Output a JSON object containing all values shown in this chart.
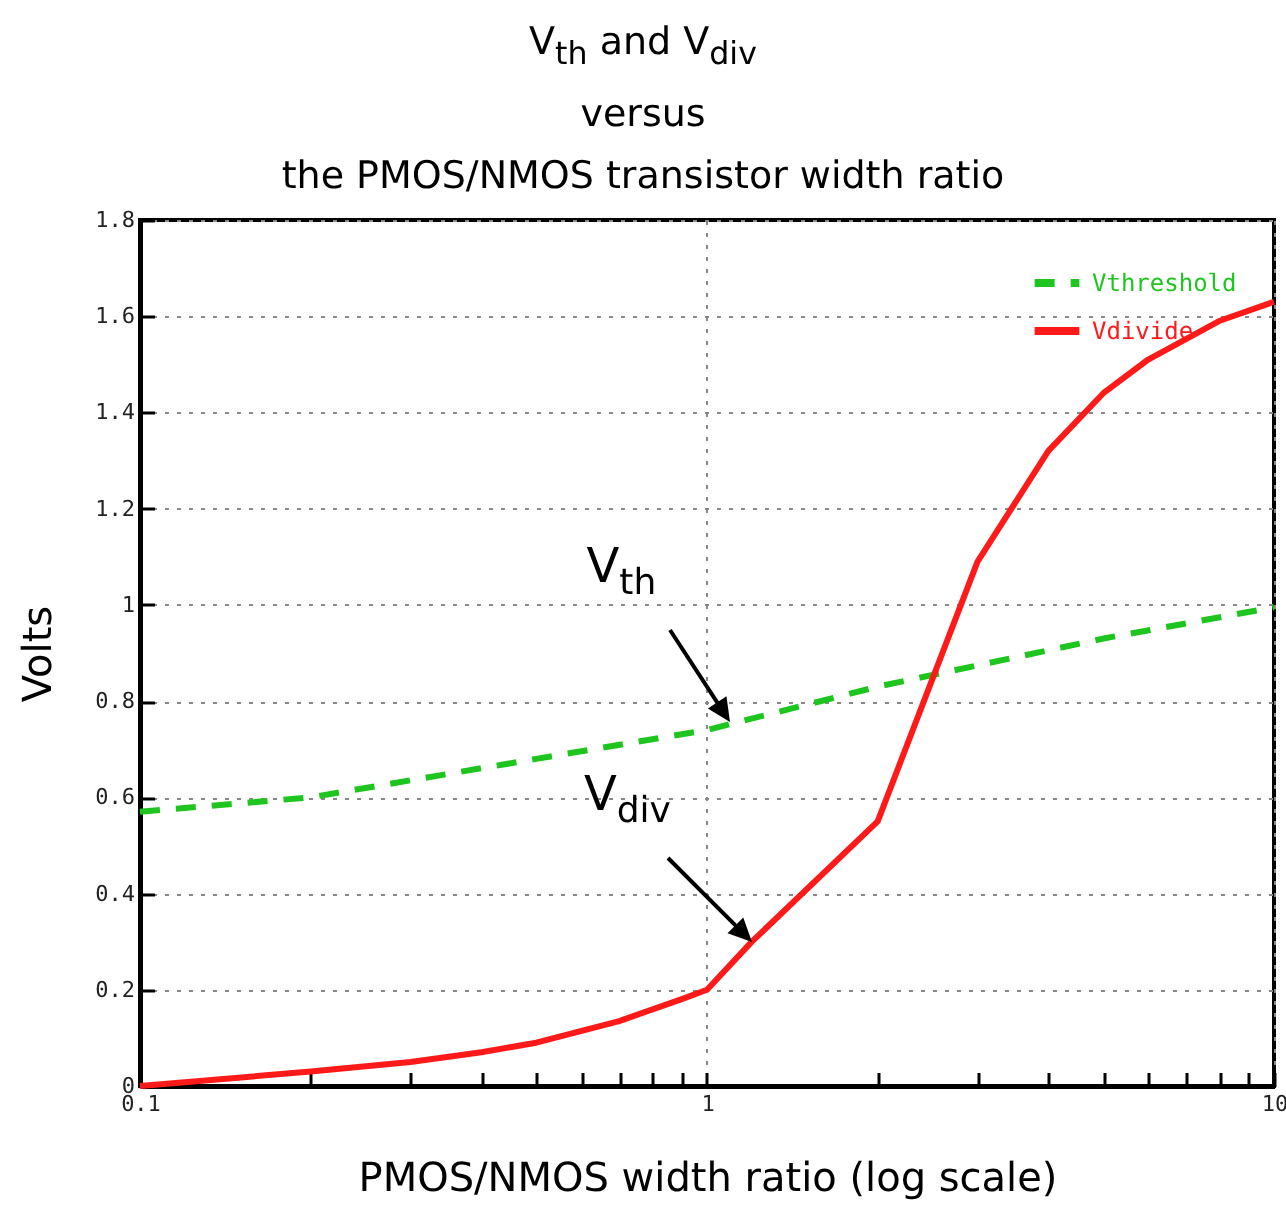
{
  "chart_data": {
    "type": "line",
    "title": "V$_{th}$ and V$_{div}$\nversus\nthe PMOS/NMOS transistor width ratio",
    "xlabel": "PMOS/NMOS width ratio (log scale)",
    "ylabel": "Volts",
    "log": "x",
    "grid": true,
    "legend": "top right",
    "xlim": [
      0.1,
      10
    ],
    "xticks": [
      0.1,
      {
        "value": 0.2,
        "label": null
      },
      {
        "value": 0.3,
        "label": null
      },
      {
        "value": 0.4,
        "label": null
      },
      {
        "value": 0.5,
        "label": null
      },
      {
        "value": 0.6,
        "label": null
      },
      {
        "value": 0.7,
        "label": null
      },
      {
        "value": 0.8,
        "label": null
      },
      {
        "value": 0.9,
        "label": null
      },
      1,
      {
        "value": 2,
        "label": null
      },
      {
        "value": 3,
        "label": null
      },
      {
        "value": 4,
        "label": null
      },
      {
        "value": 5,
        "label": null
      },
      {
        "value": 6,
        "label": null
      },
      {
        "value": 7,
        "label": null
      },
      {
        "value": 8,
        "label": null
      },
      {
        "value": 9,
        "label": null
      },
      10
    ],
    "ylim": [
      0,
      1.8
    ],
    "yticks": [
      0,
      0.2,
      0.4,
      0.6,
      0.8,
      1,
      1.2,
      1.4,
      1.6,
      1.8
    ],
    "series": [
      {
        "name": "Vthreshold",
        "color": "#1ec51e",
        "line_style": "dashed",
        "x": [
          0.1,
          0.2,
          0.5,
          1,
          2,
          5,
          10
        ],
        "values": [
          0.57,
          0.6,
          0.68,
          0.74,
          0.83,
          0.93,
          0.995
        ]
      },
      {
        "name": "Vdivide",
        "color": "#ff1a1a",
        "line_style": "solid",
        "x": [
          0.1,
          0.2,
          0.3,
          0.4,
          0.5,
          0.7,
          0.9,
          1,
          1.2,
          2,
          3,
          4,
          5,
          6,
          8,
          10
        ],
        "values": [
          0,
          0.03,
          0.05,
          0.07,
          0.09,
          0.135,
          0.18,
          0.2,
          0.3,
          0.55,
          1.09,
          1.32,
          1.44,
          1.51,
          1.59,
          1.63
        ]
      }
    ],
    "annotations": [
      {
        "text": "V$_{th}$",
        "x": 1.1,
        "y": 0.755
      },
      {
        "text": "V$_{div}$",
        "x": 1.2,
        "y": 0.3
      }
    ]
  }
}
